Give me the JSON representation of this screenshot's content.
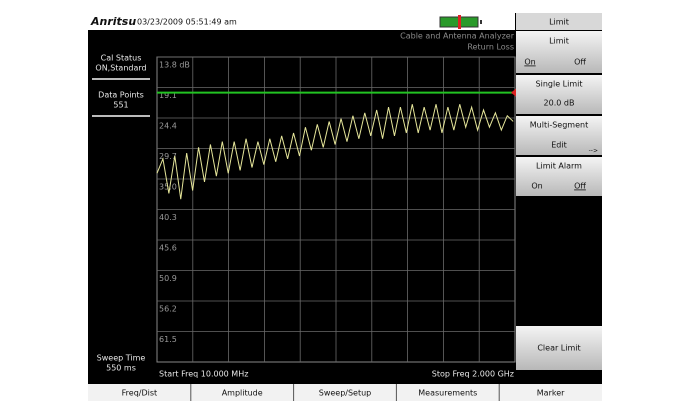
{
  "header": {
    "logo": "Anritsu",
    "datetime": "03/23/2009 05:51:49 am"
  },
  "status": {
    "cal_status": {
      "label": "Cal Status",
      "value": "ON,Standard"
    },
    "data_points": {
      "label": "Data Points",
      "value": "551"
    },
    "sweep_time": {
      "label": "Sweep Time",
      "value": "550 ms"
    }
  },
  "chart_data": {
    "type": "line",
    "title": "Cable and Antenna Analyzer",
    "subtitle": "Return Loss",
    "x_start_label": "Start Freq 10.000 MHz",
    "x_stop_label": "Stop Freq 2.000 GHz",
    "xlim": [
      10,
      2000
    ],
    "ylim": [
      13.8,
      66.8
    ],
    "yticks": [
      {
        "value": 13.8,
        "label": "13.8 dB"
      },
      19.1,
      24.4,
      29.7,
      {
        "value": 35,
        "label": "35.0"
      },
      40.3,
      45.6,
      50.9,
      56.2,
      61.5
    ],
    "grid": true,
    "color": "#e6e69a",
    "x": [
      10,
      43,
      76,
      109,
      142,
      175,
      208,
      241,
      274,
      307,
      340,
      373,
      406,
      439,
      472,
      505,
      538,
      571,
      604,
      637,
      670,
      703,
      736,
      769,
      802,
      835,
      868,
      901,
      934,
      967,
      1000,
      1033,
      1066,
      1099,
      1132,
      1165,
      1198,
      1231,
      1264,
      1297,
      1330,
      1363,
      1396,
      1429,
      1462,
      1495,
      1528,
      1561,
      1594,
      1627,
      1660,
      1693,
      1726,
      1759,
      1792,
      1825,
      1858,
      1891,
      1924,
      1957,
      1990
    ],
    "values": [
      34.0,
      31.5,
      37.5,
      31.0,
      38.5,
      30.5,
      37.0,
      29.5,
      35.5,
      29.0,
      34.5,
      28.5,
      34.0,
      28.5,
      33.5,
      28.0,
      33.0,
      28.5,
      32.5,
      28.0,
      32.0,
      27.5,
      31.5,
      27.0,
      31.0,
      26.0,
      30.0,
      25.5,
      29.5,
      25.0,
      29.0,
      24.5,
      28.5,
      24.0,
      28.0,
      23.5,
      27.5,
      23.0,
      28.0,
      22.5,
      27.5,
      22.5,
      27.0,
      22.0,
      27.0,
      22.5,
      26.5,
      22.0,
      27.0,
      22.5,
      26.5,
      22.0,
      26.0,
      22.5,
      26.5,
      23.0,
      26.0,
      23.5,
      26.5,
      24.0,
      25.0
    ],
    "limit": {
      "value": 20,
      "label": "20.0 dB",
      "color": "#22c322"
    }
  },
  "softkeys": {
    "header": "Limit",
    "limit": {
      "title": "Limit",
      "options": [
        "On",
        "Off"
      ]
    },
    "single_limit": {
      "title": "Single Limit"
    },
    "multi_segment": {
      "title": "Multi-Segment",
      "option": "Edit",
      "arrow": "-->"
    },
    "limit_alarm": {
      "title": "Limit Alarm",
      "options": [
        "On",
        "Off"
      ]
    },
    "clear_limit": {
      "title": "Clear Limit"
    }
  },
  "menu": [
    "Freq/Dist",
    "Amplitude",
    "Sweep/Setup",
    "Measurements",
    "Marker"
  ]
}
